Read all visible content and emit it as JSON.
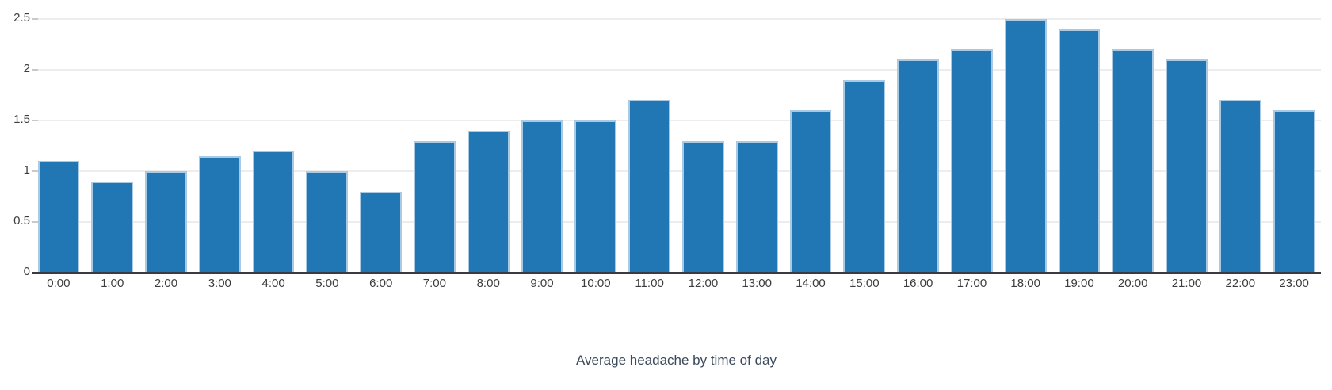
{
  "chart_data": {
    "type": "bar",
    "title": "Average headache by time of day",
    "categories": [
      "0:00",
      "1:00",
      "2:00",
      "3:00",
      "4:00",
      "5:00",
      "6:00",
      "7:00",
      "8:00",
      "9:00",
      "10:00",
      "11:00",
      "12:00",
      "13:00",
      "14:00",
      "15:00",
      "16:00",
      "17:00",
      "18:00",
      "19:00",
      "20:00",
      "21:00",
      "22:00",
      "23:00"
    ],
    "values": [
      1.1,
      0.9,
      1.0,
      1.15,
      1.2,
      1.0,
      0.8,
      1.3,
      1.4,
      1.5,
      1.5,
      1.7,
      1.3,
      1.3,
      1.6,
      1.9,
      2.1,
      2.2,
      2.5,
      2.4,
      2.2,
      2.1,
      1.7,
      1.6
    ],
    "xlabel": "",
    "ylabel": "",
    "ylim": [
      0,
      2.5
    ],
    "yticks": [
      0,
      0.5,
      1,
      1.5,
      2,
      2.5
    ],
    "ytick_labels": [
      "0",
      "0.5",
      "1",
      "1.5",
      "2",
      "2.5"
    ],
    "grid": true,
    "legend_position": "none",
    "colors": {
      "bar_fill": "#2177b4",
      "bar_stroke": "#aac9e2",
      "gridline": "#ededed",
      "axis_line": "#3a3b40",
      "tick_label": "#3d3d3d",
      "caption": "#3a4a5c"
    }
  }
}
